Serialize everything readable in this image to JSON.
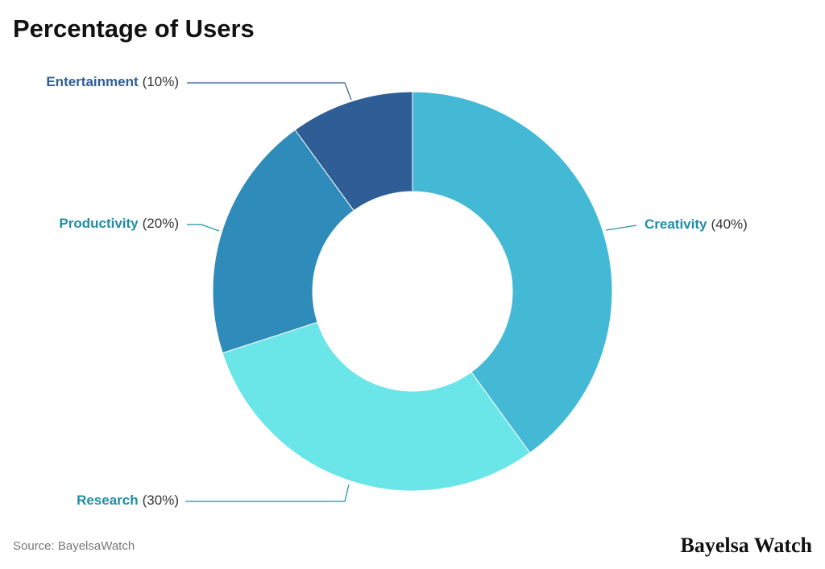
{
  "chart_data": {
    "type": "donut",
    "title": "Percentage of Users",
    "categories": [
      "Creativity",
      "Research",
      "Productivity",
      "Entertainment"
    ],
    "values": [
      40,
      30,
      20,
      10
    ],
    "value_labels": [
      "(40%)",
      "(30%)",
      "(20%)",
      "(10%)"
    ],
    "colors": [
      "#44b9d6",
      "#6ae5e8",
      "#2e8bba",
      "#2f5e96"
    ],
    "source": "Source: BayelsaWatch",
    "brand": "Bayelsa Watch"
  }
}
